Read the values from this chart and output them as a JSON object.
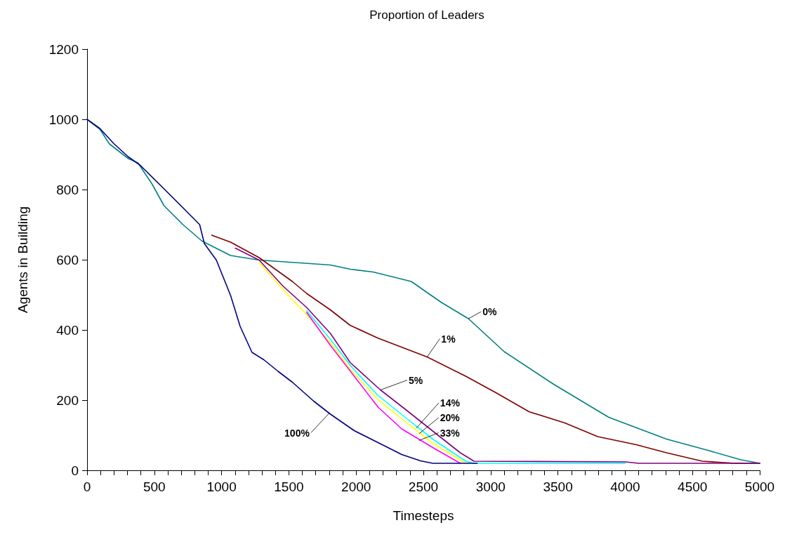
{
  "chart_data": {
    "type": "line",
    "title": "Proportion of Leaders",
    "xlabel": "Timesteps",
    "ylabel": "Agents in Building",
    "xlim": [
      0,
      5000
    ],
    "ylim": [
      0,
      1200
    ],
    "yticks": [
      0,
      200,
      400,
      600,
      800,
      1000,
      1200
    ],
    "xticks": [
      0,
      {
        "value": 100,
        "label": null
      },
      {
        "value": 200,
        "label": null
      },
      {
        "value": 300,
        "label": null
      },
      {
        "value": 400,
        "label": null
      },
      500,
      {
        "value": 600,
        "label": null
      },
      {
        "value": 700,
        "label": null
      },
      {
        "value": 800,
        "label": null
      },
      {
        "value": 900,
        "label": null
      },
      1000,
      {
        "value": 1100,
        "label": null
      },
      {
        "value": 1200,
        "label": null
      },
      {
        "value": 1300,
        "label": null
      },
      {
        "value": 1400,
        "label": null
      },
      1500,
      {
        "value": 1600,
        "label": null
      },
      {
        "value": 1700,
        "label": null
      },
      {
        "value": 1800,
        "label": null
      },
      {
        "value": 1900,
        "label": null
      },
      2000,
      {
        "value": 2100,
        "label": null
      },
      {
        "value": 2200,
        "label": null
      },
      {
        "value": 2300,
        "label": null
      },
      {
        "value": 2400,
        "label": null
      },
      2500,
      {
        "value": 2600,
        "label": null
      },
      {
        "value": 2700,
        "label": null
      },
      {
        "value": 2800,
        "label": null
      },
      {
        "value": 2900,
        "label": null
      },
      3000,
      {
        "value": 3100,
        "label": null
      },
      {
        "value": 3200,
        "label": null
      },
      {
        "value": 3300,
        "label": null
      },
      {
        "value": 3400,
        "label": null
      },
      3500,
      {
        "value": 3600,
        "label": null
      },
      {
        "value": 3700,
        "label": null
      },
      {
        "value": 3800,
        "label": null
      },
      {
        "value": 3900,
        "label": null
      },
      4000,
      {
        "value": 4100,
        "label": null
      },
      {
        "value": 4200,
        "label": null
      },
      {
        "value": 4300,
        "label": null
      },
      {
        "value": 4400,
        "label": null
      },
      4500,
      {
        "value": 4600,
        "label": null
      },
      {
        "value": 4700,
        "label": null
      },
      {
        "value": 4800,
        "label": null
      },
      {
        "value": 4900,
        "label": null
      },
      5000
    ],
    "grid": false,
    "marker": "none",
    "line_style": "solid",
    "series": [
      {
        "color": "#008080",
        "x": [
          0,
          95,
          166,
          307,
          378,
          484,
          572,
          713,
          855,
          1067,
          1279,
          1809,
          1956,
          2127,
          2410,
          2631,
          2835,
          3101,
          3469,
          3878,
          4307,
          4614,
          4859,
          5000
        ],
        "values": [
          1000,
          972,
          930,
          888,
          876,
          815,
          754,
          700,
          653,
          612,
          599,
          585,
          573,
          565,
          538,
          479,
          432,
          338,
          245,
          151,
          89,
          57,
          30,
          20
        ]
      },
      {
        "color": "#800000",
        "x": [
          926,
          1067,
          1279,
          1526,
          1632,
          1809,
          1956,
          2160,
          2528,
          2815,
          3040,
          3285,
          3551,
          3796,
          4082,
          4307,
          4573,
          4818,
          5000
        ],
        "values": [
          670,
          650,
          606,
          538,
          504,
          457,
          413,
          377,
          323,
          268,
          221,
          167,
          135,
          96,
          73,
          50,
          26,
          20,
          20
        ]
      },
      {
        "color": "#800080",
        "x": [
          1102,
          1279,
          1456,
          1632,
          1809,
          1956,
          2181,
          2365,
          2569,
          2774,
          2876,
          4001,
          4100,
          5000
        ],
        "values": [
          633,
          599,
          525,
          464,
          390,
          307,
          229,
          174,
          112,
          50,
          26,
          24,
          20,
          20
        ]
      },
      {
        "color": "#00ffff",
        "x": [
          1632,
          1809,
          1956,
          2160,
          2365,
          2569,
          2815,
          2876,
          4000
        ],
        "values": [
          455,
          373,
          299,
          214,
          151,
          89,
          26,
          20,
          20
        ]
      },
      {
        "color": "#ffff00",
        "x": [
          1279,
          1456,
          1632,
          1809,
          1956,
          2160,
          2365,
          2569,
          2815
        ],
        "values": [
          592,
          515,
          444,
          363,
          288,
          202,
          139,
          77,
          20
        ]
      },
      {
        "color": "#ff00ff",
        "x": [
          1632,
          1809,
          1986,
          2163,
          2339,
          2569,
          2774
        ],
        "values": [
          450,
          356,
          268,
          180,
          118,
          65,
          20
        ]
      },
      {
        "color": "#000080",
        "x": [
          0,
          95,
          201,
          307,
          395,
          572,
          713,
          837,
          872,
          961,
          1067,
          1138,
          1226,
          1314,
          1420,
          1526,
          1685,
          1809,
          1986,
          2163,
          2339,
          2479,
          2569,
          2900
        ],
        "values": [
          1000,
          974,
          930,
          893,
          869,
          802,
          748,
          700,
          646,
          599,
          498,
          410,
          336,
          315,
          282,
          251,
          197,
          160,
          113,
          79,
          45,
          27,
          20,
          20
        ]
      }
    ],
    "annotations": [
      {
        "text": "0%",
        "x": 2835,
        "y": 432
      },
      {
        "text": "1%",
        "x": 2528,
        "y": 323
      },
      {
        "text": "5%",
        "x": 2181,
        "y": 229
      },
      {
        "text": "14%",
        "x": 2447,
        "y": 120
      },
      {
        "text": "20%",
        "x": 2467,
        "y": 104
      },
      {
        "text": "33%",
        "x": 2467,
        "y": 85
      },
      {
        "text": "100%",
        "x": 1800,
        "y": 163
      }
    ]
  }
}
